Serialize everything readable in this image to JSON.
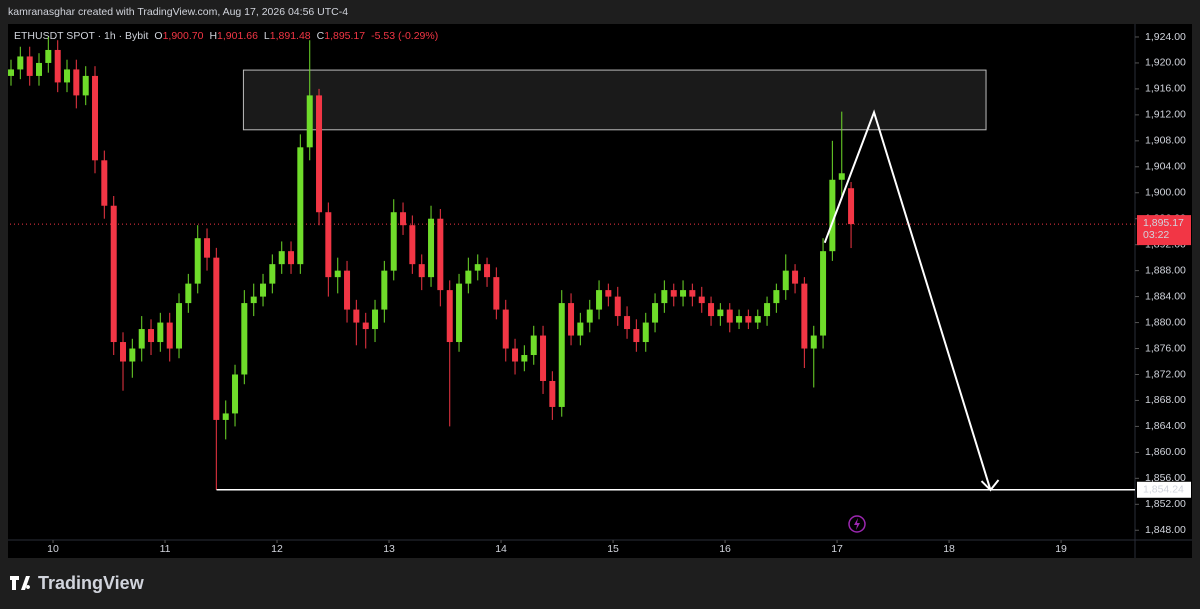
{
  "header": {
    "attribution": "kamranasghar created with TradingView.com, Aug 17, 2026 04:56 UTC-4"
  },
  "footer": {
    "brand": "TradingView"
  },
  "chart_data": {
    "type": "candlestick",
    "symbol_info": {
      "symbol": "ETHUSDT SPOT · 1h · Bybit",
      "fields": [
        {
          "key": "O",
          "value": "1,900.70"
        },
        {
          "key": "H",
          "value": "1,901.66"
        },
        {
          "key": "L",
          "value": "1,891.48"
        },
        {
          "key": "C",
          "value": "1,895.17"
        }
      ],
      "change": "-5.53 (-0.29%)"
    },
    "up_color": "#6fdc2a",
    "down_color": "#f23645",
    "xlim": [
      9.616,
      19.66
    ],
    "xticks": [
      10,
      11,
      12,
      13,
      14,
      15,
      16,
      17,
      18,
      19
    ],
    "ylim": [
      1846.5,
      1926
    ],
    "yticks": [
      {
        "value": 1848,
        "label": "1,848.00"
      },
      {
        "value": 1852,
        "label": "1,852.00"
      },
      {
        "value": 1856,
        "label": "1,856.00"
      },
      {
        "value": 1860,
        "label": "1,860.00"
      },
      {
        "value": 1864,
        "label": "1,864.00"
      },
      {
        "value": 1868,
        "label": "1,868.00"
      },
      {
        "value": 1872,
        "label": "1,872.00"
      },
      {
        "value": 1876,
        "label": "1,876.00"
      },
      {
        "value": 1880,
        "label": "1,880.00"
      },
      {
        "value": 1884,
        "label": "1,884.00"
      },
      {
        "value": 1888,
        "label": "1,888.00"
      },
      {
        "value": 1892,
        "label": "1,892.00"
      },
      {
        "value": 1896,
        "label": "1,896.00"
      },
      {
        "value": 1900,
        "label": "1,900.00"
      },
      {
        "value": 1904,
        "label": "1,904.00"
      },
      {
        "value": 1908,
        "label": "1,908.00"
      },
      {
        "value": 1912,
        "label": "1,912.00"
      },
      {
        "value": 1916,
        "label": "1,916.00"
      },
      {
        "value": 1920,
        "label": "1,920.00"
      },
      {
        "value": 1924,
        "label": "1,924.00"
      }
    ],
    "grid": false,
    "x": [
      9.625,
      9.708,
      9.792,
      9.875,
      9.958,
      10.042,
      10.125,
      10.208,
      10.292,
      10.375,
      10.458,
      10.542,
      10.625,
      10.708,
      10.792,
      10.875,
      10.958,
      11.042,
      11.125,
      11.208,
      11.292,
      11.375,
      11.458,
      11.542,
      11.625,
      11.708,
      11.792,
      11.875,
      11.958,
      12.042,
      12.125,
      12.208,
      12.292,
      12.375,
      12.458,
      12.542,
      12.625,
      12.708,
      12.792,
      12.875,
      12.958,
      13.042,
      13.125,
      13.208,
      13.292,
      13.375,
      13.458,
      13.542,
      13.625,
      13.708,
      13.792,
      13.875,
      13.958,
      14.042,
      14.125,
      14.208,
      14.292,
      14.375,
      14.458,
      14.542,
      14.625,
      14.708,
      14.792,
      14.875,
      14.958,
      15.042,
      15.125,
      15.208,
      15.292,
      15.375,
      15.458,
      15.542,
      15.625,
      15.708,
      15.792,
      15.875,
      15.958,
      16.042,
      16.125,
      16.208,
      16.292,
      16.375,
      16.458,
      16.542,
      16.625,
      16.708,
      16.792,
      16.875,
      16.958,
      17.042,
      17.125
    ],
    "open": [
      1918,
      1919,
      1921,
      1918,
      1920,
      1922,
      1917,
      1919,
      1915,
      1918,
      1905,
      1898,
      1877,
      1874,
      1876,
      1879,
      1877,
      1880,
      1876,
      1883,
      1886,
      1893,
      1890,
      1865,
      1866,
      1872,
      1883,
      1884,
      1886,
      1889,
      1891,
      1889,
      1907,
      1915,
      1897,
      1887,
      1888,
      1882,
      1880,
      1879,
      1882,
      1888,
      1897,
      1895,
      1889,
      1887,
      1896,
      1885,
      1877,
      1886,
      1888,
      1889,
      1887,
      1882,
      1876,
      1874,
      1875,
      1878,
      1871,
      1867,
      1883,
      1878,
      1880,
      1882,
      1885,
      1884,
      1881,
      1879,
      1877,
      1880,
      1883,
      1885,
      1884,
      1885,
      1884,
      1883,
      1881,
      1882,
      1880,
      1881,
      1880,
      1881,
      1883,
      1885,
      1888,
      1886,
      1876,
      1878,
      1891,
      1902,
      1900.7
    ],
    "high": [
      1920.5,
      1922.5,
      1922.5,
      1921.5,
      1924,
      1923.5,
      1920.5,
      1920.5,
      1919.5,
      1919.5,
      1906.5,
      1899.5,
      1878.5,
      1877.5,
      1881,
      1880.5,
      1881.5,
      1881.5,
      1884.5,
      1887.5,
      1895,
      1894.5,
      1891.5,
      1868,
      1873.5,
      1885,
      1886,
      1887.5,
      1890.5,
      1892.5,
      1892.5,
      1909,
      1923.5,
      1916,
      1898.5,
      1890,
      1889.5,
      1883.5,
      1881.5,
      1883.5,
      1889.5,
      1899,
      1898.5,
      1896.5,
      1890.5,
      1898,
      1897.5,
      1886.5,
      1887.5,
      1890,
      1890.5,
      1890,
      1888.5,
      1883.5,
      1877.5,
      1876.5,
      1879.5,
      1879.5,
      1872.5,
      1885,
      1884.5,
      1881.5,
      1883.5,
      1886.5,
      1886,
      1885.5,
      1882.5,
      1880.5,
      1881.5,
      1884.5,
      1886.5,
      1886,
      1886.5,
      1886,
      1885.5,
      1884,
      1883,
      1883,
      1882,
      1882,
      1882,
      1884,
      1886,
      1890.5,
      1889,
      1887,
      1879.5,
      1893,
      1908,
      1912.5,
      1901.66
    ],
    "low": [
      1916.5,
      1917.5,
      1916.5,
      1916.5,
      1918.5,
      1915.5,
      1915.5,
      1913,
      1913.5,
      1903,
      1896,
      1875,
      1869.5,
      1871.5,
      1874,
      1875,
      1875.5,
      1874,
      1874.5,
      1881.5,
      1884.5,
      1888,
      1854.24,
      1862,
      1864,
      1870.5,
      1881,
      1882.5,
      1884.5,
      1887.5,
      1887.5,
      1887.5,
      1905,
      1895,
      1884,
      1884.5,
      1880,
      1876.5,
      1876,
      1877,
      1880,
      1886.5,
      1893.5,
      1887.5,
      1885,
      1885.5,
      1882.5,
      1864,
      1875.5,
      1884.5,
      1886.5,
      1885.5,
      1880.5,
      1874,
      1872,
      1872.5,
      1873.5,
      1869,
      1865,
      1865.5,
      1876.5,
      1876.5,
      1878.5,
      1880.5,
      1882.5,
      1879.5,
      1877.5,
      1875.5,
      1875.5,
      1878.5,
      1881.5,
      1882.5,
      1882.5,
      1882.5,
      1881.5,
      1879.5,
      1879.5,
      1878.5,
      1879,
      1879,
      1879,
      1879.5,
      1881.5,
      1883.5,
      1884.5,
      1873,
      1870,
      1876,
      1889.5,
      1899,
      1891.48
    ],
    "close": [
      1919,
      1921,
      1918,
      1920,
      1922,
      1917,
      1919,
      1915,
      1918,
      1905,
      1898,
      1877,
      1874,
      1876,
      1879,
      1877,
      1880,
      1876,
      1883,
      1886,
      1893,
      1890,
      1865,
      1866,
      1872,
      1883,
      1884,
      1886,
      1889,
      1891,
      1889,
      1907,
      1915,
      1897,
      1887,
      1888,
      1882,
      1880,
      1879,
      1882,
      1888,
      1897,
      1895,
      1889,
      1887,
      1896,
      1885,
      1877,
      1886,
      1888,
      1889,
      1887,
      1882,
      1876,
      1874,
      1875,
      1878,
      1871,
      1867,
      1883,
      1878,
      1880,
      1882,
      1885,
      1884,
      1881,
      1879,
      1877,
      1880,
      1883,
      1885,
      1884,
      1885,
      1884,
      1883,
      1881,
      1882,
      1880,
      1881,
      1880,
      1881,
      1883,
      1885,
      1888,
      1886,
      1876,
      1878,
      1891,
      1902,
      1903,
      1895.17
    ],
    "zone": {
      "x": [
        11.7,
        18.33
      ],
      "y": [
        1909.7,
        1918.9
      ]
    },
    "projection": {
      "x": [
        16.89,
        17.33,
        18.37
      ],
      "y": [
        1892.3,
        1912.4,
        1854.2
      ]
    },
    "hline": {
      "value": 1854.24,
      "label": "1,854.24",
      "x_start": 11.46
    },
    "last_price": {
      "value": 1895.17,
      "label": "1,895.17",
      "countdown": "03:22"
    }
  }
}
